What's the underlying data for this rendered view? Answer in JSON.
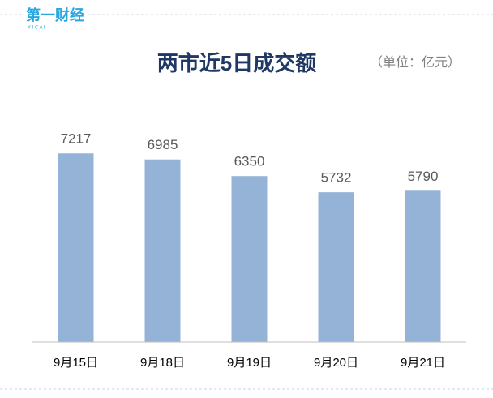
{
  "logo": "第一财经",
  "logo_sub": "Y I C A I",
  "chart_data": {
    "type": "bar",
    "title": "两市近5日成交额",
    "subtitle": "（单位：亿元）",
    "categories": [
      "9月15日",
      "9月18日",
      "9月19日",
      "9月20日",
      "9月21日"
    ],
    "values": [
      7217,
      6985,
      6350,
      5732,
      5790
    ],
    "color": "#95b3d7",
    "ylim": [
      0,
      8000
    ],
    "grid": false,
    "value_labels_shown": true
  }
}
